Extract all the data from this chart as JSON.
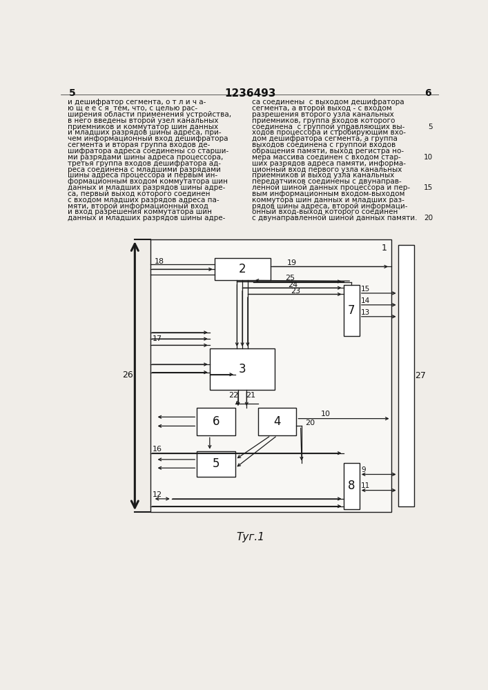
{
  "bg_color": "#f0ede8",
  "line_color": "#1a1a1a",
  "text_color": "#111111",
  "fig_label": "Τуг.1",
  "header_number": "1236493",
  "page_l": "5",
  "page_r": "6",
  "left_col_text": [
    "и дешифратор сегмента, о т л и ч а-",
    "ю щ е е с я  тем, что, с целью рас-",
    "ширения области применения устройства,",
    "в него введены второй узел канальных",
    "приемников и коммутатор шин данных",
    "и младших разрядов шины адреса, при-",
    "чем информационный вход дешифратора",
    "сегмента и вторая группа входов де-",
    "шифратора адреса соединены со старши-",
    "ми разрядами шины адреса процессора,",
    "третья группа входов дешифратора ад-",
    "реса соединена с младшими разрядами",
    "шины адреса процессора и первым ин-",
    "формационным входом коммутатора шин",
    "данных и младших разрядов шины адре-",
    "са, первый выход которого соединен",
    "с входом младших разрядов адреса па-",
    "мяти, второй информационный вход",
    "и вход разрешения коммутатора шин",
    "данных и младших разрядов шины адре-"
  ],
  "right_col_text": [
    "са соединены  с выходом дешифратора",
    "сегмента, а второй выход - с входом",
    "разрешения второго узла канальных",
    "приемников, группа входов которого",
    "соединена  с группой управляющих вы-",
    "ходов процессора и стробирующим вхо-",
    "дом дешифратора сегмента, а группа",
    "выходов соединена с группой входов",
    "обращения памяти, выход регистра но-",
    "мера массива соединен с входом стар-",
    "ших разрядов адреса памяти, информа-",
    "ционный вход первого узла канальных",
    "приемников и выход узла канальных",
    "передатчиков соединены с двунаправ-",
    "ленной шиной данных процессора и пер-",
    "вым информационным входом-выходом",
    "коммутора шин данных и младших раз-",
    "рядов шины адреса, второй информаци-",
    "онный вход-выход которого соединен",
    "с двунаправленной шиной данных памяти."
  ],
  "right_line_numbers": [
    null,
    null,
    null,
    null,
    5,
    null,
    null,
    null,
    null,
    10,
    null,
    null,
    null,
    null,
    15,
    null,
    null,
    null,
    null,
    20
  ]
}
